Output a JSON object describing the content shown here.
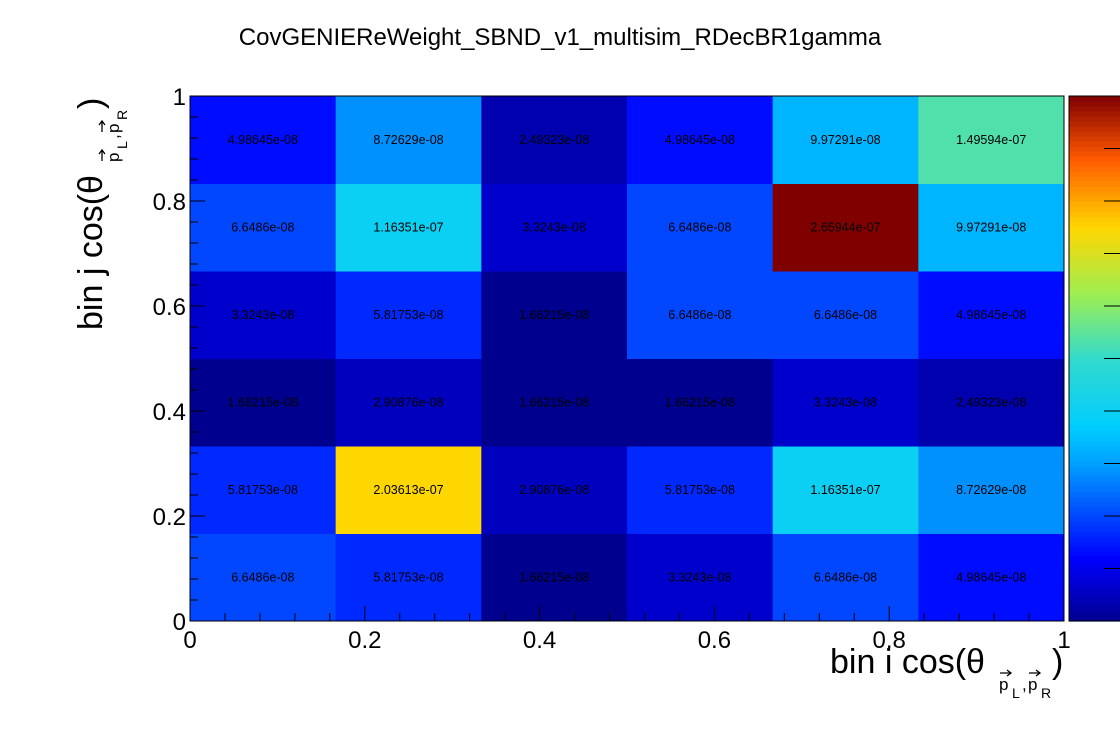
{
  "chart_data": {
    "type": "heatmap",
    "title": "CovGENIEReWeight_SBND_v1_multisim_RDecBR1gamma",
    "xlabel": {
      "main": "bin i cos(θ",
      "sub_p1": "p",
      "sub_L": "L",
      "sub_comma": ",",
      "sub_p2": "p",
      "sub_R": "R",
      "close": ")"
    },
    "ylabel": {
      "main": "bin j cos(θ",
      "sub_p1": "p",
      "sub_L": "L",
      "sub_comma": ",",
      "sub_p2": "p",
      "sub_R": "R",
      "close": ")"
    },
    "xlim": [
      0,
      1
    ],
    "ylim": [
      0,
      1
    ],
    "xticks": [
      "0",
      "0.2",
      "0.4",
      "0.6",
      "0.8",
      "1"
    ],
    "yticks": [
      "0",
      "0.2",
      "0.4",
      "0.6",
      "0.8",
      "1"
    ],
    "colorscale": {
      "min": 1.66215e-08,
      "max": 2.65944e-07,
      "palette": "rainbow"
    },
    "rows": [
      {
        "value_labels": [
          "6.6486e-08",
          "5.81753e-08",
          "1.66215e-08",
          "3.3243e-08",
          "6.6486e-08",
          "4.98645e-08"
        ],
        "values": [
          6.6486e-08,
          5.81753e-08,
          1.66215e-08,
          3.3243e-08,
          6.6486e-08,
          4.98645e-08
        ]
      },
      {
        "value_labels": [
          "5.81753e-08",
          "2.03613e-07",
          "2.90876e-08",
          "5.81753e-08",
          "1.16351e-07",
          "8.72629e-08"
        ],
        "values": [
          5.81753e-08,
          2.03613e-07,
          2.90876e-08,
          5.81753e-08,
          1.16351e-07,
          8.72629e-08
        ]
      },
      {
        "value_labels": [
          "1.66215e-08",
          "2.90876e-08",
          "1.66215e-08",
          "1.66215e-08",
          "3.3243e-08",
          "2.49323e-08"
        ],
        "values": [
          1.66215e-08,
          2.90876e-08,
          1.66215e-08,
          1.66215e-08,
          3.3243e-08,
          2.49323e-08
        ]
      },
      {
        "value_labels": [
          "3.3243e-08",
          "5.81753e-08",
          "1.66215e-08",
          "6.6486e-08",
          "6.6486e-08",
          "4.98645e-08"
        ],
        "values": [
          3.3243e-08,
          5.81753e-08,
          1.66215e-08,
          6.6486e-08,
          6.6486e-08,
          4.98645e-08
        ]
      },
      {
        "value_labels": [
          "6.6486e-08",
          "1.16351e-07",
          "3.3243e-08",
          "6.6486e-08",
          "2.65944e-07",
          "9.97291e-08"
        ],
        "values": [
          6.6486e-08,
          1.16351e-07,
          3.3243e-08,
          6.6486e-08,
          2.65944e-07,
          9.97291e-08
        ]
      },
      {
        "value_labels": [
          "4.98645e-08",
          "8.72629e-08",
          "2.49323e-08",
          "4.98645e-08",
          "9.97291e-08",
          "1.49594e-07"
        ],
        "values": [
          4.98645e-08,
          8.72629e-08,
          2.49323e-08,
          4.98645e-08,
          9.97291e-08,
          1.49594e-07
        ]
      }
    ]
  }
}
